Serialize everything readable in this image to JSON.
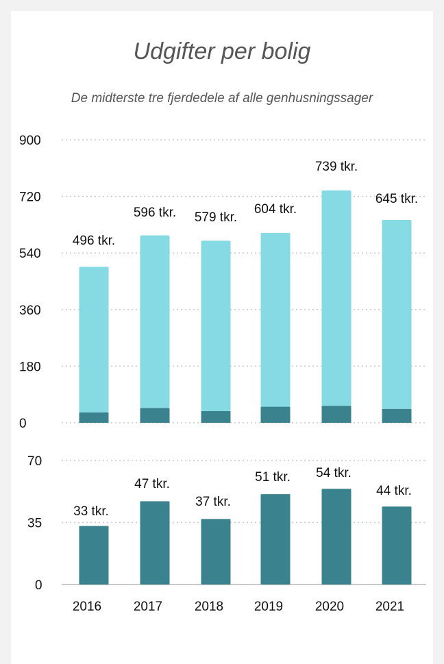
{
  "title": "Udgifter per bolig",
  "subtitle": "De midterste tre fjerdedele af alle genhusningssager",
  "colors": {
    "light_bar": "#85dae3",
    "dark_bar": "#3a828d",
    "grid": "#c8c8c8",
    "text": "#111111",
    "title": "#555555"
  },
  "chart_data": [
    {
      "type": "bar",
      "stacked": true,
      "categories": [
        "2016",
        "2017",
        "2018",
        "2019",
        "2020",
        "2021"
      ],
      "series": [
        {
          "values": [
            33,
            47,
            37,
            51,
            54,
            44
          ]
        },
        {
          "values": [
            463,
            549,
            542,
            553,
            685,
            601
          ]
        }
      ],
      "totals": [
        496,
        596,
        579,
        604,
        739,
        645
      ],
      "data_labels": [
        "496 tkr.",
        "596 tkr.",
        "579 tkr.",
        "604 tkr.",
        "739 tkr.",
        "645 tkr."
      ],
      "yticks": [
        "900",
        "720",
        "540",
        "360",
        "180",
        "0"
      ],
      "ylim": [
        0,
        900
      ],
      "grid": true
    },
    {
      "type": "bar",
      "categories": [
        "2016",
        "2017",
        "2018",
        "2019",
        "2020",
        "2021"
      ],
      "values": [
        33,
        47,
        37,
        51,
        54,
        44
      ],
      "data_labels": [
        "33 tkr.",
        "47 tkr.",
        "37 tkr.",
        "51 tkr.",
        "54 tkr.",
        "44 tkr."
      ],
      "yticks": [
        "70",
        "35",
        "0"
      ],
      "ylim": [
        0,
        70
      ],
      "grid": true
    }
  ]
}
